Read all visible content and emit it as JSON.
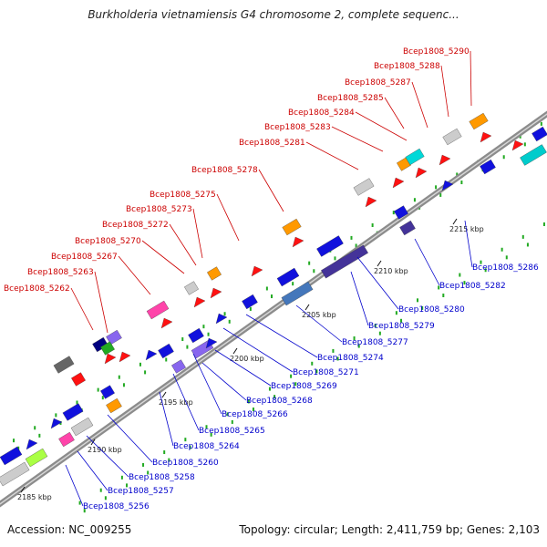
{
  "title": "Burkholderia vietnamiensis G4 chromosome 2, complete sequenc...",
  "footer": {
    "accession": "Accession: NC_009255",
    "summary": "Topology: circular; Length: 2,411,759 bp; Genes: 2,103"
  },
  "colors": {
    "top_strand_label": "#cc0000",
    "bottom_strand_label": "#0000cc",
    "backbone": "#8c8c8c",
    "tick_dots": "#22aa22"
  },
  "scale_ticks": [
    "2185 kbp",
    "2190 kbp",
    "2195 kbp",
    "2200 kbp",
    "2205 kbp",
    "2210 kbp",
    "2215 kbp"
  ],
  "top_labels": [
    "Bcep1808_5262",
    "Bcep1808_5263",
    "Bcep1808_5267",
    "Bcep1808_5270",
    "Bcep1808_5272",
    "Bcep1808_5273",
    "Bcep1808_5275",
    "Bcep1808_5278",
    "Bcep1808_5281",
    "Bcep1808_5283",
    "Bcep1808_5284",
    "Bcep1808_5285",
    "Bcep1808_5287",
    "Bcep1808_5288",
    "Bcep1808_5290"
  ],
  "bottom_labels": [
    "Bcep1808_5256",
    "Bcep1808_5257",
    "Bcep1808_5258",
    "Bcep1808_5260",
    "Bcep1808_5264",
    "Bcep1808_5265",
    "Bcep1808_5266",
    "Bcep1808_5268",
    "Bcep1808_5269",
    "Bcep1808_5271",
    "Bcep1808_5274",
    "Bcep1808_5277",
    "Bcep1808_5279",
    "Bcep1808_5280",
    "Bcep1808_5282",
    "Bcep1808_5286"
  ]
}
